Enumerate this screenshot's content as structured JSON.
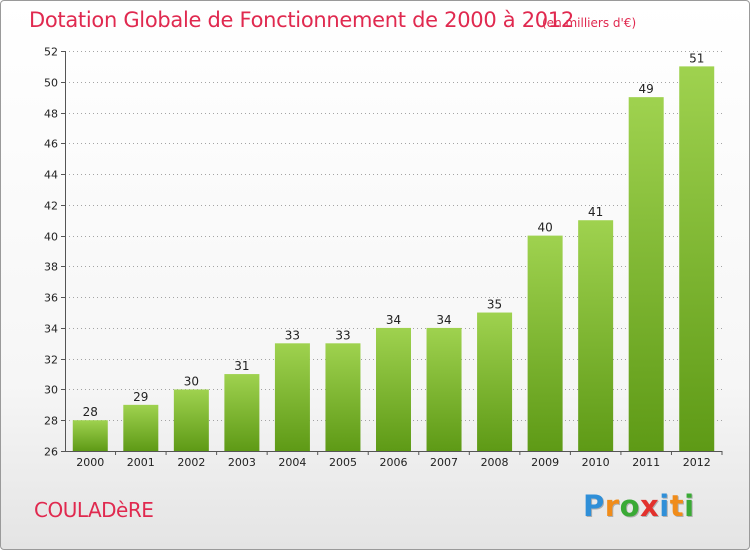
{
  "title": "Dotation Globale de Fonctionnement de 2000 à 2012",
  "subtitle": "(en milliers d'€)",
  "commune": "COULADèRE",
  "logo": {
    "text": "Proxiti",
    "letters": [
      "P",
      "r",
      "o",
      "x",
      "i",
      "t",
      "i"
    ],
    "colors": [
      "#2f8fd8",
      "#f08c1a",
      "#3aaa35",
      "#e2312d",
      "#2f8fd8",
      "#f08c1a",
      "#3aaa35"
    ]
  },
  "colors": {
    "accent": "#e0294f",
    "bar_top": "#9fd24f",
    "bar_bottom": "#5e9a16",
    "grid": "#888888"
  },
  "chart_data": {
    "type": "bar",
    "title": "Dotation Globale de Fonctionnement de 2000 à 2012",
    "subtitle": "(en milliers d'€)",
    "xlabel": "",
    "ylabel": "",
    "categories": [
      "2000",
      "2001",
      "2002",
      "2003",
      "2004",
      "2005",
      "2006",
      "2007",
      "2008",
      "2009",
      "2010",
      "2011",
      "2012"
    ],
    "values": [
      28,
      29,
      30,
      31,
      33,
      33,
      34,
      34,
      35,
      40,
      41,
      49,
      51
    ],
    "ylim": [
      26,
      52
    ],
    "yticks": [
      26,
      28,
      30,
      32,
      34,
      36,
      38,
      40,
      42,
      44,
      46,
      48,
      50,
      52
    ],
    "grid": true,
    "legend": "none"
  }
}
